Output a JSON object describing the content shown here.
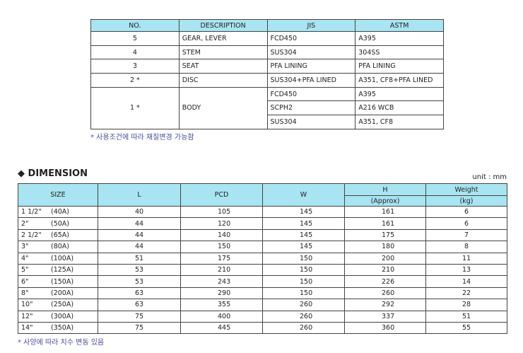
{
  "materials": {
    "header": [
      "NO.",
      "DESCRIPTION",
      "JIS",
      "ASTM"
    ],
    "rows": [
      {
        "no": "5",
        "description": "GEAR, LEVER",
        "jis": [
          "FCD450"
        ],
        "astm": [
          "A395"
        ]
      },
      {
        "no": "4",
        "description": "STEM",
        "jis": [
          "SUS304"
        ],
        "astm": [
          "304SS"
        ]
      },
      {
        "no": "3",
        "description": "SEAT",
        "jis": [
          "PFA LINING"
        ],
        "astm": [
          "PFA LINING"
        ]
      },
      {
        "no": "2 *",
        "description": "DISC",
        "jis": [
          "SUS304+PFA LINED"
        ],
        "astm": [
          "A351, CF8+PFA LINED"
        ]
      },
      {
        "no": "1 *",
        "description": "BODY",
        "jis": [
          "FCD450",
          "SCPH2",
          "SUS304"
        ],
        "astm": [
          "A395",
          "A216 WCB",
          "A351, CF8"
        ]
      }
    ],
    "note": "* 사용조건에 따라 재질변경 가능함"
  },
  "dimension": {
    "title": "◆ DIMENSION",
    "unit": "unit : mm",
    "header": {
      "size": "SIZE",
      "l": "L",
      "pcd": "PCD",
      "w": "W",
      "h": "H",
      "h_sub": "(Approx)",
      "weight": "Weight",
      "weight_sub": "(kg)"
    },
    "rows": [
      {
        "size": "1 1/2\"",
        "dn": "(40A)",
        "values": [
          40,
          105,
          145,
          161,
          6
        ]
      },
      {
        "size": "2\"",
        "dn": "(50A)",
        "values": [
          44,
          120,
          145,
          161,
          6
        ]
      },
      {
        "size": "2 1/2\"",
        "dn": "(65A)",
        "values": [
          44,
          140,
          145,
          175,
          7
        ]
      },
      {
        "size": "3\"",
        "dn": "(80A)",
        "values": [
          44,
          150,
          145,
          180,
          8
        ]
      },
      {
        "size": "4\"",
        "dn": "(100A)",
        "values": [
          51,
          175,
          150,
          200,
          11
        ]
      },
      {
        "size": "5\"",
        "dn": "(125A)",
        "values": [
          53,
          210,
          150,
          210,
          13
        ]
      },
      {
        "size": "6\"",
        "dn": "(150A)",
        "values": [
          53,
          243,
          150,
          226,
          14
        ]
      },
      {
        "size": "8\"",
        "dn": "(200A)",
        "values": [
          63,
          290,
          150,
          260,
          22
        ]
      },
      {
        "size": "10\"",
        "dn": "(250A)",
        "values": [
          63,
          355,
          260,
          292,
          28
        ]
      },
      {
        "size": "12\"",
        "dn": "(300A)",
        "values": [
          75,
          400,
          260,
          337,
          51
        ]
      },
      {
        "size": "14\"",
        "dn": "(350A)",
        "values": [
          75,
          445,
          260,
          360,
          55
        ]
      }
    ],
    "note": "* 사양에 따라 치수 변동 있음"
  }
}
